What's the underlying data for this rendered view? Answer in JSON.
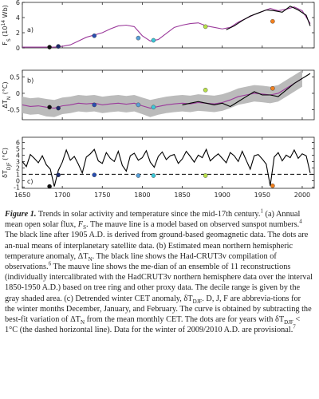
{
  "chart_data": [
    {
      "type": "line",
      "panel_label": "a)",
      "ylabel": [
        {
          "text": "F"
        },
        {
          "text": "S",
          "style": "sub"
        },
        {
          "text": " (10"
        },
        {
          "text": "14",
          "style": "sup"
        },
        {
          "text": " Wb)"
        }
      ],
      "xlim": [
        1650,
        2015
      ],
      "xticks": [
        1650,
        1700,
        1750,
        1800,
        1850,
        1900,
        1950,
        2000
      ],
      "ylim": [
        0,
        6
      ],
      "yticks": [
        0,
        2,
        4,
        6
      ],
      "series": [
        {
          "kind": "line",
          "color": "#9b3a9b",
          "x": [
            1650,
            1660,
            1670,
            1680,
            1690,
            1700,
            1710,
            1720,
            1730,
            1740,
            1750,
            1760,
            1770,
            1780,
            1790,
            1800,
            1810,
            1820,
            1830,
            1840,
            1850,
            1860,
            1870,
            1880,
            1890,
            1900,
            1910,
            1920,
            1930,
            1940,
            1950,
            1960,
            1970,
            1980,
            1990,
            2000,
            2010
          ],
          "values": [
            0.1,
            0.1,
            0.1,
            0.1,
            0.1,
            0.2,
            0.4,
            0.9,
            1.4,
            1.7,
            2.0,
            2.5,
            2.9,
            3.0,
            2.8,
            1.6,
            0.9,
            1.1,
            1.9,
            2.7,
            3.0,
            3.2,
            3.3,
            2.9,
            2.7,
            2.5,
            2.7,
            3.4,
            3.9,
            4.4,
            4.8,
            5.2,
            4.9,
            5.1,
            5.4,
            4.9,
            3.2
          ]
        },
        {
          "kind": "line",
          "color": "#000000",
          "x": [
            1905,
            1915,
            1925,
            1935,
            1945,
            1955,
            1965,
            1975,
            1985,
            1995,
            2005,
            2010
          ],
          "values": [
            2.4,
            2.9,
            3.6,
            4.2,
            4.6,
            5.0,
            4.9,
            4.7,
            5.5,
            5.0,
            4.3,
            2.9
          ]
        },
        {
          "kind": "dots",
          "x": [
            1684,
            1695,
            1740,
            1795,
            1814,
            1879,
            1963
          ],
          "values": [
            0.1,
            0.2,
            1.6,
            1.3,
            1.0,
            2.8,
            3.5
          ],
          "colors": [
            "#111111",
            "#1c2a6b",
            "#2a4fb0",
            "#5aa0d8",
            "#3cc8d8",
            "#b8e04a",
            "#f07f1e"
          ]
        }
      ]
    },
    {
      "type": "line",
      "panel_label": "b)",
      "ylabel": [
        {
          "text": "ΔT"
        },
        {
          "text": "N",
          "style": "sub"
        },
        {
          "text": " (°C)"
        }
      ],
      "xlim": [
        1650,
        2015
      ],
      "xticks": [
        1650,
        1700,
        1750,
        1800,
        1850,
        1900,
        1950,
        2000
      ],
      "ylim": [
        -0.8,
        0.7
      ],
      "yticks": [
        -0.5,
        0,
        0.5
      ],
      "series": [
        {
          "kind": "band",
          "color": "#bbbbbb",
          "x": [
            1650,
            1660,
            1670,
            1680,
            1690,
            1700,
            1710,
            1720,
            1730,
            1740,
            1750,
            1760,
            1770,
            1780,
            1790,
            1800,
            1810,
            1820,
            1830,
            1840,
            1850,
            1860,
            1870,
            1880,
            1890,
            1900,
            1910,
            1920,
            1930,
            1940,
            1950,
            1960,
            1970,
            1980,
            1990,
            2000
          ],
          "low": [
            -0.6,
            -0.65,
            -0.63,
            -0.7,
            -0.72,
            -0.63,
            -0.6,
            -0.55,
            -0.57,
            -0.55,
            -0.6,
            -0.57,
            -0.55,
            -0.58,
            -0.55,
            -0.63,
            -0.72,
            -0.65,
            -0.6,
            -0.57,
            -0.55,
            -0.57,
            -0.53,
            -0.55,
            -0.57,
            -0.53,
            -0.45,
            -0.35,
            -0.3,
            -0.25,
            -0.27,
            -0.3,
            -0.25,
            -0.1,
            0.05,
            0.2
          ],
          "high": [
            -0.1,
            -0.15,
            -0.13,
            -0.17,
            -0.2,
            -0.13,
            -0.1,
            -0.05,
            -0.07,
            -0.05,
            -0.1,
            -0.07,
            -0.05,
            -0.08,
            -0.05,
            -0.13,
            -0.2,
            -0.15,
            -0.1,
            -0.07,
            -0.05,
            -0.07,
            -0.03,
            -0.05,
            -0.07,
            -0.03,
            0.05,
            0.15,
            0.2,
            0.25,
            0.23,
            0.2,
            0.25,
            0.4,
            0.55,
            0.7
          ]
        },
        {
          "kind": "line",
          "color": "#9b3a9b",
          "x": [
            1650,
            1660,
            1670,
            1680,
            1690,
            1700,
            1710,
            1720,
            1730,
            1740,
            1750,
            1760,
            1770,
            1780,
            1790,
            1800,
            1810,
            1820,
            1830,
            1840,
            1850,
            1860,
            1870,
            1880,
            1890,
            1900,
            1910,
            1920,
            1930,
            1940,
            1950,
            1960,
            1970,
            1980,
            1990,
            2000
          ],
          "values": [
            -0.35,
            -0.4,
            -0.38,
            -0.42,
            -0.45,
            -0.38,
            -0.35,
            -0.3,
            -0.32,
            -0.3,
            -0.35,
            -0.32,
            -0.3,
            -0.33,
            -0.3,
            -0.38,
            -0.45,
            -0.4,
            -0.35,
            -0.32,
            -0.3,
            -0.32,
            -0.28,
            -0.3,
            -0.32,
            -0.28,
            -0.2,
            -0.1,
            -0.05,
            0.0,
            -0.02,
            -0.05,
            0.0,
            0.15,
            0.3,
            0.45
          ]
        },
        {
          "kind": "line",
          "color": "#000000",
          "x": [
            1850,
            1860,
            1870,
            1880,
            1890,
            1900,
            1910,
            1920,
            1930,
            1940,
            1950,
            1960,
            1970,
            1980,
            1990,
            2000,
            2010
          ],
          "values": [
            -0.35,
            -0.3,
            -0.25,
            -0.3,
            -0.35,
            -0.3,
            -0.4,
            -0.25,
            -0.1,
            0.05,
            -0.05,
            -0.05,
            -0.1,
            0.1,
            0.3,
            0.45,
            0.6
          ]
        },
        {
          "kind": "dots",
          "x": [
            1684,
            1695,
            1740,
            1795,
            1814,
            1879,
            1963
          ],
          "values": [
            -0.42,
            -0.45,
            -0.35,
            -0.35,
            -0.42,
            0.1,
            0.15
          ],
          "colors": [
            "#111111",
            "#1c2a6b",
            "#2a4fb0",
            "#5aa0d8",
            "#3cc8d8",
            "#b8e04a",
            "#f07f1e"
          ]
        }
      ]
    },
    {
      "type": "line",
      "panel_label": "c)",
      "ylabel": [
        {
          "text": "δT"
        },
        {
          "text": "DJF",
          "style": "sub"
        },
        {
          "text": " (°C)"
        }
      ],
      "xlim": [
        1650,
        2015
      ],
      "xticks": [
        1650,
        1700,
        1750,
        1800,
        1850,
        1900,
        1950,
        2000
      ],
      "ylim": [
        -1.2,
        6.8
      ],
      "yticks": [
        -1,
        0,
        1,
        2,
        3,
        4,
        5,
        6
      ],
      "threshold": 1,
      "series": [
        {
          "kind": "line",
          "color": "#000000",
          "x": [
            1650,
            1655,
            1660,
            1665,
            1670,
            1675,
            1680,
            1685,
            1690,
            1695,
            1700,
            1705,
            1710,
            1715,
            1720,
            1725,
            1730,
            1735,
            1740,
            1745,
            1750,
            1755,
            1760,
            1765,
            1770,
            1775,
            1780,
            1785,
            1790,
            1795,
            1800,
            1805,
            1810,
            1815,
            1820,
            1825,
            1830,
            1835,
            1840,
            1845,
            1850,
            1855,
            1860,
            1865,
            1870,
            1875,
            1880,
            1885,
            1890,
            1895,
            1900,
            1905,
            1910,
            1915,
            1920,
            1925,
            1930,
            1935,
            1940,
            1945,
            1950,
            1955,
            1960,
            1965,
            1970,
            1975,
            1980,
            1985,
            1990,
            1995,
            2000,
            2005,
            2010
          ],
          "values": [
            3.0,
            2.2,
            4.1,
            3.5,
            2.8,
            3.9,
            2.5,
            1.8,
            -0.9,
            1.6,
            2.9,
            4.8,
            3.2,
            3.8,
            2.6,
            1.2,
            3.7,
            4.2,
            4.9,
            3.1,
            2.7,
            4.4,
            3.5,
            3.0,
            4.6,
            2.4,
            1.5,
            3.9,
            4.3,
            3.2,
            3.6,
            4.7,
            2.9,
            2.1,
            3.8,
            4.5,
            3.3,
            3.9,
            4.1,
            2.7,
            3.4,
            4.6,
            3.8,
            2.9,
            4.0,
            3.6,
            4.9,
            3.1,
            3.7,
            4.2,
            3.5,
            2.8,
            4.4,
            3.9,
            3.0,
            4.6,
            3.2,
            1.8,
            3.9,
            4.1,
            3.4,
            2.6,
            -0.8,
            3.7,
            4.4,
            3.1,
            4.0,
            3.6,
            4.8,
            3.5,
            4.2,
            3.9,
            1.2
          ]
        },
        {
          "kind": "dots",
          "x": [
            1684,
            1695,
            1740,
            1795,
            1814,
            1879,
            1963
          ],
          "values": [
            -0.9,
            0.9,
            0.9,
            0.8,
            0.8,
            0.8,
            -0.8
          ],
          "colors": [
            "#111111",
            "#1c2a6b",
            "#2a4fb0",
            "#5aa0d8",
            "#3cc8d8",
            "#b8e04a",
            "#f07f1e"
          ]
        }
      ]
    }
  ],
  "caption": {
    "runs": [
      {
        "text": "Figure 1.",
        "style": "bi"
      },
      {
        "text": " Trends in solar activity and temperature since the mid-17th century."
      },
      {
        "text": "1",
        "style": "sup"
      },
      {
        "text": " (a) Annual mean open solar flux, "
      },
      {
        "text": "F",
        "style": "i"
      },
      {
        "text": "S",
        "style": "sub"
      },
      {
        "text": ". The mauve line is a model based on observed sunspot numbers."
      },
      {
        "text": "4",
        "style": "sup"
      },
      {
        "text": " The black line after 1905 A.D. is derived from ground-based geomagnetic data. The dots are an-nual means of interplanetary satellite data. (b) Estimated mean northern hemispheric temperature anomaly, ΔT"
      },
      {
        "text": "N",
        "style": "sub"
      },
      {
        "text": ". The black line shows the Had-CRUT3v compilation of observations."
      },
      {
        "text": "6",
        "style": "sup"
      },
      {
        "text": " The mauve line shows the me-dian of an ensemble of 11 reconstructions (individually intercalibrated with the HadCRUT3v northern hemisphere data over the interval 1850-1950 A.D.) based on tree ring and other proxy data. The decile range is given by the gray shaded area. (c) Detrended winter CET anomaly, δT"
      },
      {
        "text": "DJF",
        "style": "sub"
      },
      {
        "text": ". D, J, F are abbrevia-tions for the winter months December, January, and February. The curve is obtained by subtracting the best-fit variation of ΔT"
      },
      {
        "text": "N",
        "style": "sub"
      },
      {
        "text": " from the mean monthly CET. The dots are for years with δT"
      },
      {
        "text": "DJF",
        "style": "sub"
      },
      {
        "text": " < 1°C (the dashed horizontal line). Data for the winter of 2009/2010 A.D. are provisional."
      },
      {
        "text": "7",
        "style": "sup"
      }
    ]
  }
}
